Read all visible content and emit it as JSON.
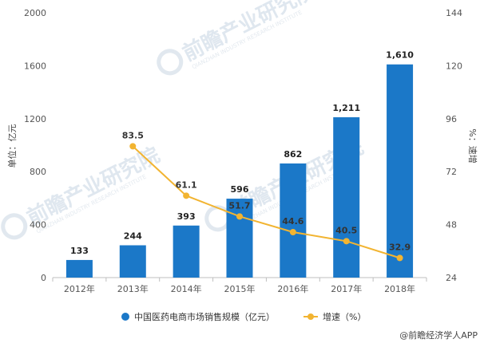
{
  "chart_data": {
    "type": "bar",
    "categories": [
      "2012年",
      "2013年",
      "2014年",
      "2015年",
      "2016年",
      "2017年",
      "2018年"
    ],
    "series": [
      {
        "name": "中国医药电商市场销售规模（亿元）",
        "type": "bar",
        "axis": "left",
        "color": "#1b78c8",
        "values": [
          133,
          244,
          393,
          596,
          862,
          1211,
          1610
        ],
        "labels": [
          "133",
          "244",
          "393",
          "596",
          "862",
          "1,211",
          "1,610"
        ]
      },
      {
        "name": "增速（%）",
        "type": "line",
        "axis": "right",
        "color": "#f2b431",
        "values": [
          null,
          83.5,
          61.1,
          51.7,
          44.6,
          40.5,
          32.9
        ],
        "labels": [
          "",
          "83.5",
          "61.1",
          "51.7",
          "44.6",
          "40.5",
          "32.9"
        ]
      }
    ],
    "y_left": {
      "label": "单位：亿元",
      "ylim": [
        0,
        2000
      ],
      "ticks": [
        0,
        400,
        800,
        1200,
        1600,
        2000
      ]
    },
    "y_right": {
      "label": "%：速增",
      "ylim": [
        24,
        144
      ],
      "ticks": [
        24,
        48,
        72,
        96,
        120,
        144
      ]
    },
    "grid": false,
    "legend_position": "bottom-center"
  },
  "watermark": {
    "text": "前瞻产业研究院",
    "sub": "QIANZHAN INDUSTRY RESEARCH INSTITUTE"
  },
  "credit": "@前瞻经济学人APP"
}
